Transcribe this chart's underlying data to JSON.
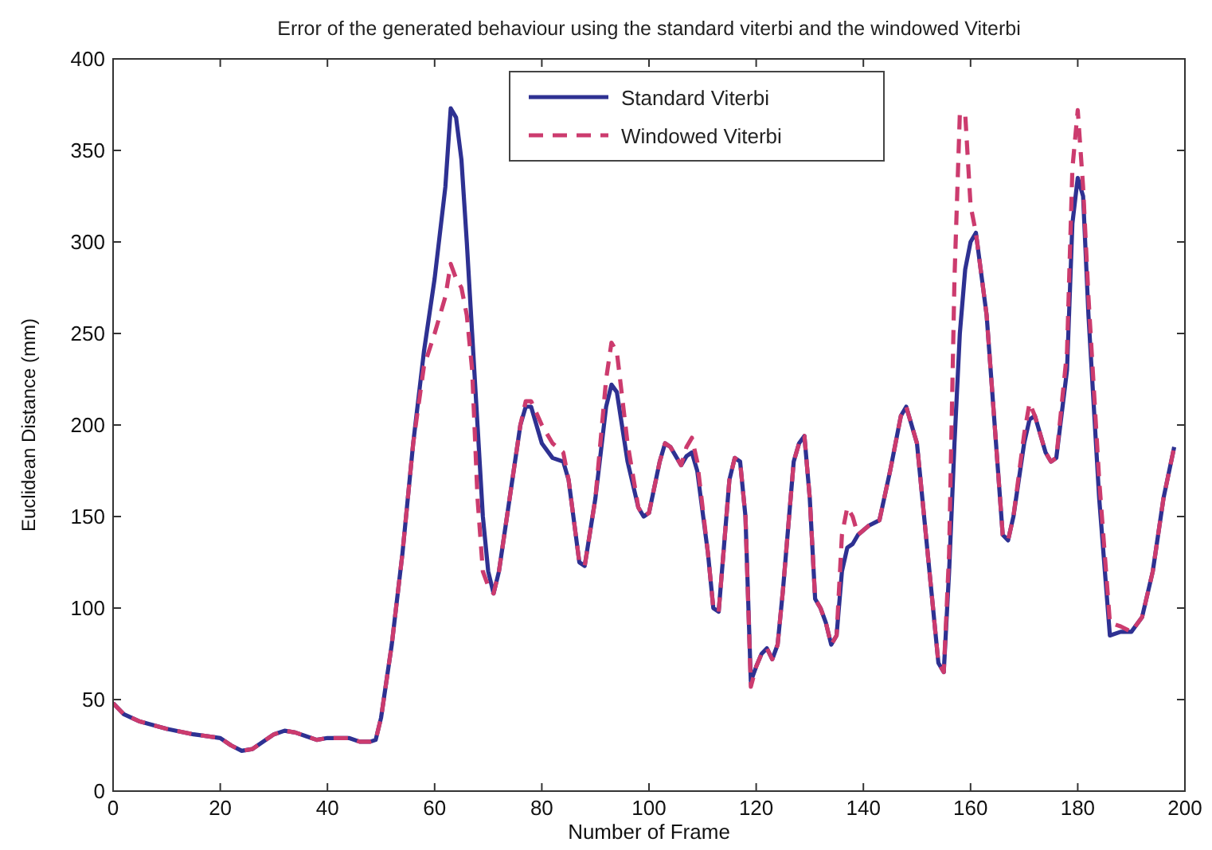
{
  "chart_data": {
    "type": "line",
    "title": "Error of the generated behaviour using the standard viterbi and the windowed Viterbi",
    "xlabel": "Number of Frame",
    "ylabel": "Euclidean Distance (mm)",
    "x": [
      0,
      2,
      5,
      10,
      15,
      20,
      22,
      24,
      26,
      28,
      30,
      32,
      34,
      36,
      38,
      40,
      44,
      46,
      48,
      49,
      50,
      52,
      54,
      56,
      58,
      60,
      62,
      63,
      64,
      65,
      66,
      67,
      68,
      69,
      70,
      71,
      72,
      74,
      76,
      77,
      78,
      80,
      82,
      84,
      85,
      87,
      88,
      90,
      92,
      93,
      94,
      96,
      98,
      99,
      100,
      102,
      103,
      104,
      106,
      107,
      108,
      109,
      111,
      112,
      113,
      115,
      116,
      117,
      118,
      119,
      120,
      121,
      122,
      123,
      124,
      125,
      127,
      128,
      129,
      130,
      131,
      132,
      133,
      134,
      135,
      136,
      137,
      138,
      139,
      141,
      143,
      145,
      147,
      148,
      150,
      152,
      154,
      155,
      156,
      157,
      158,
      159,
      160,
      161,
      163,
      165,
      166,
      167,
      168,
      170,
      171,
      172,
      174,
      175,
      176,
      178,
      179,
      180,
      181,
      182,
      184,
      186,
      188,
      190,
      192,
      194,
      196,
      198
    ],
    "series": [
      {
        "name": "Standard Viterbi",
        "color": "#2e3192",
        "line_style": "solid",
        "values": [
          48,
          42,
          38,
          34,
          31,
          29,
          25,
          22,
          23,
          27,
          31,
          33,
          32,
          30,
          28,
          29,
          29,
          27,
          27,
          28,
          40,
          80,
          130,
          190,
          240,
          280,
          330,
          373,
          368,
          345,
          300,
          250,
          200,
          150,
          120,
          108,
          120,
          160,
          200,
          210,
          210,
          190,
          182,
          180,
          170,
          125,
          123,
          160,
          210,
          222,
          218,
          180,
          155,
          150,
          152,
          180,
          190,
          188,
          178,
          183,
          185,
          175,
          130,
          100,
          98,
          170,
          182,
          180,
          150,
          60,
          68,
          75,
          78,
          72,
          80,
          110,
          180,
          190,
          194,
          160,
          105,
          100,
          92,
          80,
          85,
          120,
          133,
          135,
          140,
          145,
          148,
          175,
          205,
          210,
          190,
          130,
          70,
          65,
          120,
          190,
          250,
          285,
          300,
          305,
          260,
          180,
          140,
          137,
          150,
          190,
          203,
          205,
          185,
          180,
          182,
          230,
          310,
          335,
          325,
          260,
          160,
          85,
          87,
          87,
          95,
          120,
          160,
          188
        ]
      },
      {
        "name": "Windowed Viterbi",
        "color": "#cc3b6e",
        "line_style": "dashed",
        "values": [
          48,
          42,
          38,
          34,
          31,
          29,
          25,
          22,
          23,
          27,
          31,
          33,
          32,
          30,
          28,
          29,
          29,
          27,
          27,
          28,
          40,
          80,
          130,
          190,
          232,
          250,
          270,
          288,
          280,
          275,
          260,
          230,
          160,
          120,
          112,
          108,
          120,
          160,
          200,
          213,
          213,
          200,
          190,
          185,
          170,
          125,
          123,
          160,
          225,
          245,
          240,
          190,
          155,
          150,
          152,
          180,
          190,
          188,
          178,
          188,
          193,
          180,
          130,
          100,
          98,
          170,
          182,
          180,
          150,
          57,
          68,
          75,
          78,
          72,
          80,
          110,
          180,
          190,
          194,
          160,
          105,
          100,
          92,
          80,
          85,
          140,
          155,
          150,
          140,
          145,
          148,
          175,
          205,
          210,
          190,
          130,
          70,
          65,
          130,
          280,
          370,
          370,
          320,
          305,
          260,
          180,
          140,
          137,
          150,
          195,
          212,
          205,
          185,
          180,
          182,
          240,
          340,
          372,
          330,
          270,
          170,
          92,
          90,
          87,
          95,
          120,
          160,
          188
        ]
      }
    ],
    "xlim": [
      0,
      200
    ],
    "xticks": [
      0,
      20,
      40,
      60,
      80,
      100,
      120,
      140,
      160,
      180,
      200
    ],
    "ylim": [
      0,
      400
    ],
    "yticks": [
      0,
      50,
      100,
      150,
      200,
      250,
      300,
      350,
      400
    ],
    "legend": "top",
    "grid": false
  }
}
